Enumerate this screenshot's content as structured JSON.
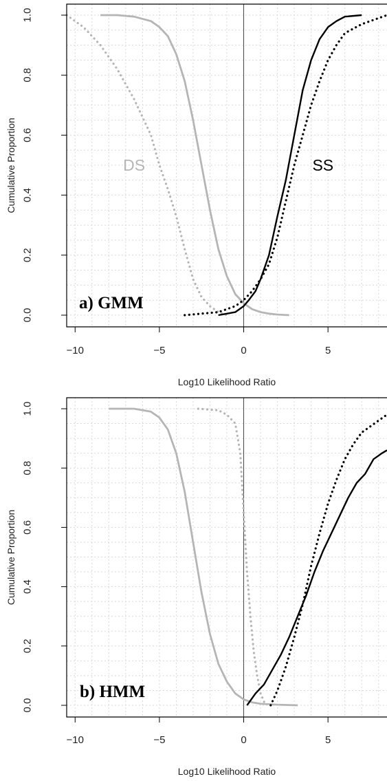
{
  "chart_data": [
    {
      "type": "line",
      "panel_label": "a) GMM",
      "xlabel": "Log10 Likelihood Ratio",
      "ylabel": "Cumulative Proportion",
      "xticks": [
        "−10",
        "−5",
        "0",
        "5"
      ],
      "xtick_values": [
        -10,
        -5,
        0,
        5
      ],
      "yticks": [
        "0.0",
        "0.2",
        "0.4",
        "0.6",
        "0.8",
        "1.0"
      ],
      "ytick_values": [
        0,
        0.2,
        0.4,
        0.6,
        0.8,
        1.0
      ],
      "xlim": [
        -10.5,
        8.5
      ],
      "ylim": [
        0,
        1
      ],
      "grid": true,
      "annotations": [
        {
          "text": "DS",
          "x": -6.5,
          "y": 0.5,
          "color": "#b5b5b5"
        },
        {
          "text": "SS",
          "x": 4.7,
          "y": 0.5,
          "color": "#000000"
        }
      ],
      "series": [
        {
          "style": "solid",
          "color": "#b5b5b5",
          "x": [
            -8.5,
            -7.5,
            -6.5,
            -5.5,
            -5.0,
            -4.5,
            -4.0,
            -3.5,
            -3.0,
            -2.5,
            -2.0,
            -1.5,
            -1.0,
            -0.5,
            0.0,
            0.5,
            1.0,
            1.5,
            2.0,
            2.7
          ],
          "y": [
            1.0,
            1.0,
            0.995,
            0.98,
            0.96,
            0.93,
            0.87,
            0.78,
            0.65,
            0.5,
            0.35,
            0.22,
            0.13,
            0.07,
            0.04,
            0.02,
            0.01,
            0.005,
            0.002,
            0.0
          ]
        },
        {
          "style": "dotted",
          "color": "#b5b5b5",
          "x": [
            -10.5,
            -9.5,
            -8.5,
            -7.5,
            -6.5,
            -5.5,
            -5.0,
            -4.5,
            -4.0,
            -3.5,
            -3.0,
            -2.5,
            -2.0,
            -1.5,
            -1.0
          ],
          "y": [
            1.0,
            0.96,
            0.9,
            0.82,
            0.72,
            0.6,
            0.5,
            0.42,
            0.33,
            0.22,
            0.12,
            0.06,
            0.03,
            0.01,
            0.0
          ]
        },
        {
          "style": "solid",
          "color": "#000000",
          "x": [
            -1.5,
            -1.0,
            -0.5,
            0.0,
            0.3,
            0.7,
            1.0,
            1.5,
            2.0,
            2.5,
            3.0,
            3.5,
            4.0,
            4.5,
            5.0,
            5.5,
            6.0,
            7.0
          ],
          "y": [
            0.0,
            0.005,
            0.01,
            0.03,
            0.05,
            0.08,
            0.12,
            0.2,
            0.33,
            0.45,
            0.6,
            0.75,
            0.85,
            0.92,
            0.96,
            0.98,
            0.995,
            1.0
          ]
        },
        {
          "style": "dotted",
          "color": "#000000",
          "x": [
            -3.5,
            -2.5,
            -1.5,
            -0.5,
            0.0,
            0.5,
            1.0,
            1.5,
            2.0,
            2.5,
            3.0,
            3.5,
            4.0,
            4.5,
            5.0,
            5.5,
            6.0,
            7.0,
            8.5
          ],
          "y": [
            0.0,
            0.005,
            0.01,
            0.03,
            0.05,
            0.08,
            0.12,
            0.17,
            0.26,
            0.38,
            0.5,
            0.6,
            0.7,
            0.78,
            0.85,
            0.9,
            0.94,
            0.97,
            1.0
          ]
        }
      ]
    },
    {
      "type": "line",
      "panel_label": "b) HMM",
      "xlabel": "Log10 Likelihood Ratio",
      "ylabel": "Cumulative Proportion",
      "xticks": [
        "−10",
        "−5",
        "0",
        "5"
      ],
      "xtick_values": [
        -10,
        -5,
        0,
        5
      ],
      "yticks": [
        "0.0",
        "0.2",
        "0.4",
        "0.6",
        "0.8",
        "1.0"
      ],
      "ytick_values": [
        0,
        0.2,
        0.4,
        0.6,
        0.8,
        1.0
      ],
      "xlim": [
        -10.5,
        8.5
      ],
      "ylim": [
        0,
        1
      ],
      "grid": true,
      "annotations": [],
      "series": [
        {
          "style": "solid",
          "color": "#b5b5b5",
          "x": [
            -8.0,
            -6.5,
            -5.5,
            -5.0,
            -4.5,
            -4.0,
            -3.5,
            -3.0,
            -2.5,
            -2.0,
            -1.5,
            -1.0,
            -0.5,
            0.0,
            0.5,
            1.0,
            2.0,
            3.2
          ],
          "y": [
            1.0,
            1.0,
            0.99,
            0.97,
            0.93,
            0.85,
            0.72,
            0.55,
            0.38,
            0.24,
            0.14,
            0.08,
            0.04,
            0.02,
            0.01,
            0.005,
            0.002,
            0.0
          ]
        },
        {
          "style": "dotted",
          "color": "#b5b5b5",
          "x": [
            -2.7,
            -1.5,
            -1.0,
            -0.5,
            -0.2,
            0.0,
            0.2,
            0.4,
            0.6,
            0.8,
            1.0,
            1.3
          ],
          "y": [
            1.0,
            0.995,
            0.98,
            0.95,
            0.85,
            0.65,
            0.45,
            0.3,
            0.18,
            0.1,
            0.04,
            0.0
          ]
        },
        {
          "style": "solid",
          "color": "#000000",
          "x": [
            0.2,
            0.7,
            1.2,
            1.7,
            2.2,
            2.7,
            3.2,
            3.7,
            4.2,
            4.7,
            5.2,
            5.7,
            6.2,
            6.7,
            7.2,
            7.7,
            8.2,
            8.5
          ],
          "y": [
            0.0,
            0.04,
            0.07,
            0.12,
            0.17,
            0.23,
            0.3,
            0.37,
            0.45,
            0.52,
            0.58,
            0.64,
            0.7,
            0.75,
            0.78,
            0.83,
            0.85,
            0.86
          ]
        },
        {
          "style": "dotted",
          "color": "#000000",
          "x": [
            1.6,
            2.0,
            2.5,
            3.0,
            3.5,
            4.0,
            4.5,
            5.0,
            5.5,
            6.0,
            6.5,
            7.0,
            7.5,
            8.0,
            8.5
          ],
          "y": [
            0.0,
            0.05,
            0.13,
            0.23,
            0.34,
            0.47,
            0.58,
            0.68,
            0.76,
            0.83,
            0.88,
            0.92,
            0.94,
            0.96,
            0.98
          ]
        }
      ]
    }
  ]
}
